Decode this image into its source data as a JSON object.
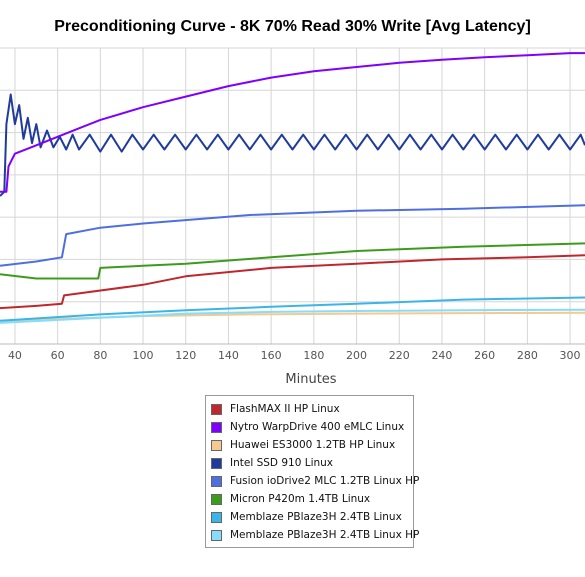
{
  "chart_data": {
    "type": "line",
    "title": "Preconditioning Curve - 8K 70% Read 30% Write [Avg Latency]",
    "xlabel": "Minutes",
    "ylabel": "",
    "xlim": [
      33,
      307
    ],
    "ylim": [
      0,
      7
    ],
    "x_ticks": [
      40,
      60,
      80,
      100,
      120,
      140,
      160,
      180,
      200,
      220,
      240,
      260,
      280,
      300
    ],
    "y_gridlines": [
      1,
      2,
      3,
      4,
      5,
      6,
      7
    ],
    "grid": true,
    "legend_placement": "bottom-center",
    "series": [
      {
        "name": "FlashMAX II HP Linux",
        "color": "#c0272d",
        "points": [
          [
            33,
            0.85
          ],
          [
            50,
            0.9
          ],
          [
            62,
            0.95
          ],
          [
            63,
            1.15
          ],
          [
            100,
            1.4
          ],
          [
            120,
            1.6
          ],
          [
            160,
            1.8
          ],
          [
            200,
            1.9
          ],
          [
            240,
            2.0
          ],
          [
            280,
            2.05
          ],
          [
            307,
            2.1
          ]
        ]
      },
      {
        "name": "Nytro WarpDrive 400 eMLC Linux",
        "color": "#7f00ff",
        "points": [
          [
            33,
            3.6
          ],
          [
            36,
            3.6
          ],
          [
            37,
            4.2
          ],
          [
            40,
            4.5
          ],
          [
            50,
            4.7
          ],
          [
            60,
            4.9
          ],
          [
            70,
            5.1
          ],
          [
            80,
            5.3
          ],
          [
            100,
            5.6
          ],
          [
            120,
            5.85
          ],
          [
            140,
            6.1
          ],
          [
            160,
            6.3
          ],
          [
            180,
            6.45
          ],
          [
            200,
            6.55
          ],
          [
            220,
            6.65
          ],
          [
            240,
            6.72
          ],
          [
            260,
            6.78
          ],
          [
            280,
            6.83
          ],
          [
            300,
            6.88
          ],
          [
            307,
            6.88
          ]
        ]
      },
      {
        "name": "Huawei ES3000 1.2TB HP Linux",
        "color": "#f5c98f",
        "points": [
          [
            33,
            0.55
          ],
          [
            100,
            0.66
          ],
          [
            150,
            0.7
          ],
          [
            200,
            0.72
          ],
          [
            250,
            0.73
          ],
          [
            307,
            0.74
          ]
        ]
      },
      {
        "name": "Intel SSD 910 Linux",
        "color": "#1f3c9c",
        "points": [
          [
            33,
            3.5
          ],
          [
            35,
            3.6
          ],
          [
            36,
            5.2
          ],
          [
            38,
            5.9
          ],
          [
            40,
            5.2
          ],
          [
            42,
            5.65
          ],
          [
            44,
            4.85
          ],
          [
            46,
            5.35
          ],
          [
            48,
            4.75
          ],
          [
            50,
            5.2
          ],
          [
            52,
            4.65
          ],
          [
            55,
            5.05
          ],
          [
            58,
            4.65
          ],
          [
            61,
            4.9
          ],
          [
            64,
            4.6
          ],
          [
            67,
            4.95
          ],
          [
            70,
            4.6
          ],
          [
            75,
            4.95
          ],
          [
            80,
            4.55
          ],
          [
            85,
            4.95
          ],
          [
            90,
            4.55
          ],
          [
            95,
            4.95
          ],
          [
            100,
            4.6
          ],
          [
            105,
            4.95
          ],
          [
            110,
            4.6
          ],
          [
            115,
            4.95
          ],
          [
            120,
            4.6
          ],
          [
            125,
            4.95
          ],
          [
            130,
            4.6
          ],
          [
            135,
            4.95
          ],
          [
            140,
            4.6
          ],
          [
            145,
            4.95
          ],
          [
            150,
            4.6
          ],
          [
            155,
            4.95
          ],
          [
            160,
            4.6
          ],
          [
            165,
            4.95
          ],
          [
            170,
            4.6
          ],
          [
            175,
            4.95
          ],
          [
            180,
            4.6
          ],
          [
            185,
            4.95
          ],
          [
            190,
            4.6
          ],
          [
            195,
            4.95
          ],
          [
            200,
            4.6
          ],
          [
            205,
            4.95
          ],
          [
            210,
            4.6
          ],
          [
            215,
            4.95
          ],
          [
            220,
            4.6
          ],
          [
            225,
            4.95
          ],
          [
            230,
            4.6
          ],
          [
            235,
            4.95
          ],
          [
            240,
            4.6
          ],
          [
            245,
            4.95
          ],
          [
            250,
            4.6
          ],
          [
            255,
            4.95
          ],
          [
            260,
            4.6
          ],
          [
            265,
            4.95
          ],
          [
            270,
            4.6
          ],
          [
            275,
            4.95
          ],
          [
            280,
            4.6
          ],
          [
            285,
            4.95
          ],
          [
            290,
            4.6
          ],
          [
            295,
            4.95
          ],
          [
            300,
            4.6
          ],
          [
            305,
            4.95
          ],
          [
            307,
            4.7
          ]
        ]
      },
      {
        "name": "Fusion ioDrive2 MLC 1.2TB Linux HP",
        "color": "#4f6fe0",
        "points": [
          [
            33,
            1.85
          ],
          [
            50,
            1.95
          ],
          [
            62,
            2.05
          ],
          [
            64,
            2.6
          ],
          [
            80,
            2.75
          ],
          [
            100,
            2.85
          ],
          [
            150,
            3.05
          ],
          [
            200,
            3.15
          ],
          [
            250,
            3.2
          ],
          [
            307,
            3.28
          ]
        ]
      },
      {
        "name": "Micron P420m 1.4TB Linux",
        "color": "#3c9b1c",
        "points": [
          [
            33,
            1.65
          ],
          [
            50,
            1.55
          ],
          [
            79,
            1.55
          ],
          [
            80,
            1.8
          ],
          [
            100,
            1.85
          ],
          [
            120,
            1.9
          ],
          [
            160,
            2.05
          ],
          [
            200,
            2.2
          ],
          [
            250,
            2.3
          ],
          [
            307,
            2.38
          ]
        ]
      },
      {
        "name": "Memblaze PBlaze3H 2.4TB Linux",
        "color": "#3bb4e8",
        "points": [
          [
            33,
            0.55
          ],
          [
            80,
            0.7
          ],
          [
            120,
            0.8
          ],
          [
            160,
            0.88
          ],
          [
            200,
            0.95
          ],
          [
            250,
            1.05
          ],
          [
            307,
            1.1
          ]
        ]
      },
      {
        "name": "Memblaze PBlaze3H 2.4TB Linux HP",
        "color": "#86dcfa",
        "points": [
          [
            33,
            0.5
          ],
          [
            80,
            0.62
          ],
          [
            120,
            0.72
          ],
          [
            160,
            0.76
          ],
          [
            200,
            0.78
          ],
          [
            250,
            0.8
          ],
          [
            307,
            0.81
          ]
        ]
      }
    ]
  }
}
